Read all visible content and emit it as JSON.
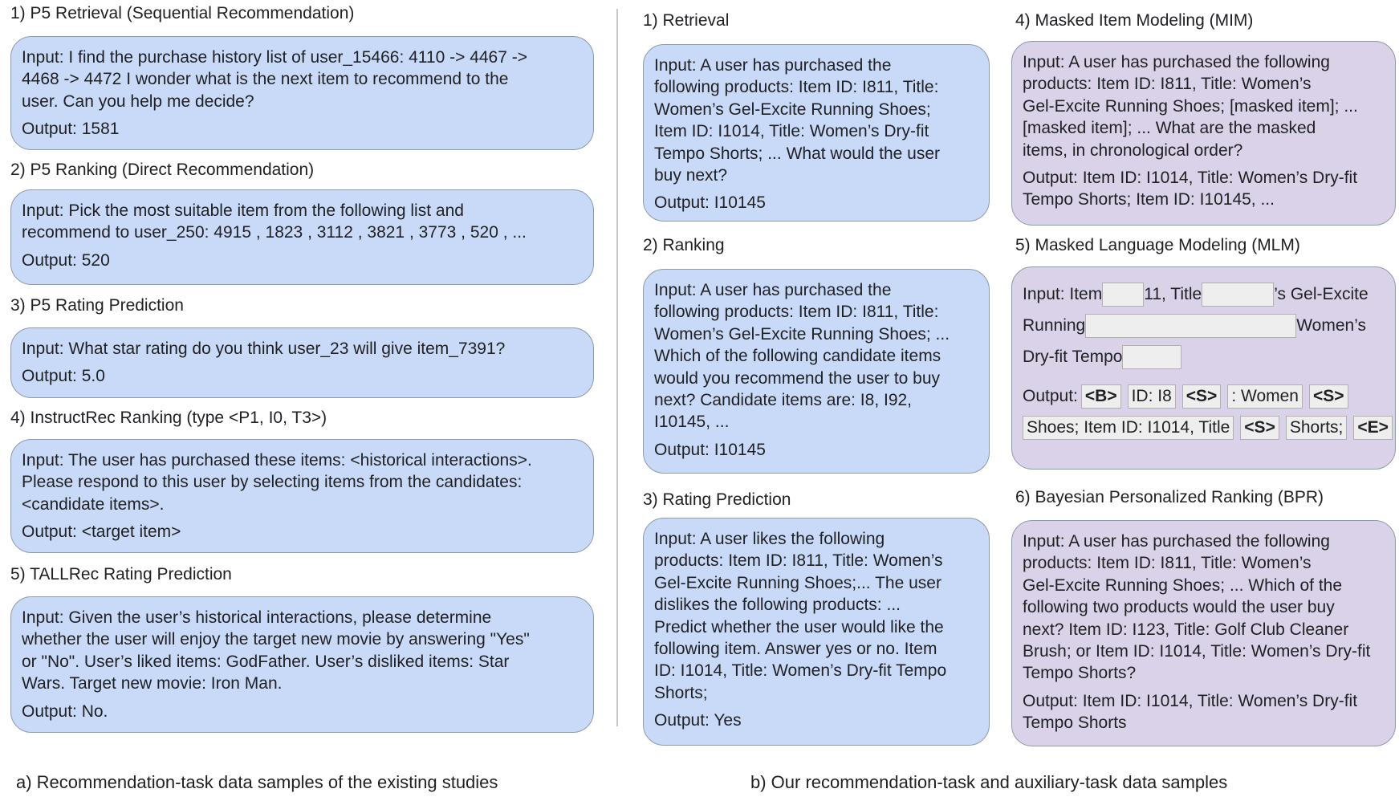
{
  "left": {
    "sections": [
      {
        "title": "1) P5 Retrieval (Sequential Recommendation)",
        "lines": [
          "Input: I find the purchase history list of user_15466: 4110 -> 4467 ->",
          "4468 -> 4472 I wonder what is the next item to recommend to the",
          "user. Can you help me decide?"
        ],
        "output": "Output: 1581"
      },
      {
        "title": "2) P5 Ranking (Direct Recommendation)",
        "lines": [
          "Input: Pick the most suitable item from the following list and",
          "recommend to user_250: 4915 , 1823 , 3112 , 3821 , 3773 , 520 , ..."
        ],
        "output": "Output: 520"
      },
      {
        "title": "3) P5 Rating Prediction",
        "lines": [
          "Input: What star rating do you think user_23 will give item_7391?"
        ],
        "output": "Output: 5.0"
      },
      {
        "title": "4) InstructRec Ranking (type <P1, I0, T3>)",
        "lines": [
          "Input: The user has purchased these items: <historical interactions>.",
          "Please respond to this user by selecting items from the candidates:",
          "<candidate items>."
        ],
        "output": "Output: <target item>"
      },
      {
        "title": "5) TALLRec Rating Prediction",
        "lines": [
          "Input: Given the user’s historical interactions, please determine",
          "whether the user will enjoy the target new movie by answering \"Yes\"",
          "or \"No\". User’s liked items: GodFather. User’s disliked items: Star",
          "Wars. Target new movie: Iron Man."
        ],
        "output": "Output: No."
      }
    ],
    "caption": "a)  Recommendation-task data samples of the existing studies"
  },
  "middle": {
    "sections": [
      {
        "title": "1) Retrieval",
        "lines": [
          "Input: A user has purchased the",
          "following products: Item ID: I811, Title:",
          "Women’s Gel-Excite Running Shoes;",
          "Item ID: I1014, Title: Women’s Dry-fit",
          "Tempo Shorts; ... What would the user",
          "buy next?"
        ],
        "output": "Output: I10145"
      },
      {
        "title": "2) Ranking",
        "lines": [
          "Input: A user has purchased the",
          "following products: Item ID: I811, Title:",
          "Women’s Gel-Excite Running Shoes; ...",
          "Which of the following candidate items",
          "would you recommend the user to buy",
          "next? Candidate items are: I8, I92,",
          "I10145, ..."
        ],
        "output": "Output: I10145"
      },
      {
        "title": "3) Rating Prediction",
        "lines": [
          "Input: A user likes the following",
          "products: Item ID: I811, Title: Women’s",
          "Gel-Excite Running Shoes;... The user",
          "dislikes the following products: ...",
          "Predict whether the user would like the",
          "following item. Answer yes or no. Item",
          "ID: I1014, Title: Women’s Dry-fit Tempo",
          "Shorts;"
        ],
        "output": "Output: Yes"
      }
    ]
  },
  "right": {
    "mim": {
      "title": "4) Masked Item Modeling (MIM)",
      "lines": [
        "Input: A user has purchased the following",
        "products: Item ID: I811, Title: Women’s",
        "Gel-Excite Running Shoes; [masked item]; ...",
        "[masked item]; ... What are the masked",
        "items, in chronological order?"
      ],
      "output_lines": [
        "Output: Item ID: I1014, Title: Women’s Dry-fit",
        "Tempo Shorts; Item ID: I10145, ..."
      ]
    },
    "mlm": {
      "title": "5) Masked Language Modeling (MLM)",
      "input": {
        "t1": "Input: Item ",
        "t2": "11, Title",
        "t3": "’s Gel-Excite",
        "t4": "Running ",
        "t5": " Women’s",
        "t6": "Dry-fit Tempo "
      },
      "output_label": "Output: ",
      "tokens1": [
        "<B>",
        " ID: I8",
        "<S>",
        ": Women",
        "<S>"
      ],
      "tokens2": [
        "Shoes; Item ID: I1014, Title",
        "<S>",
        "Shorts;",
        "<E>"
      ]
    },
    "bpr": {
      "title": "6) Bayesian Personalized Ranking (BPR)",
      "lines": [
        "Input: A user has purchased the following",
        "products: Item ID: I811, Title: Women’s",
        "Gel-Excite Running Shoes; ... Which of the",
        "following two products would the user buy",
        "next? Item ID: I123, Title: Golf Club Cleaner",
        "Brush; or Item ID: I1014, Title: Women’s Dry-fit",
        "Tempo Shorts?"
      ],
      "output_lines": [
        "Output: Item ID: I1014, Title: Women’s Dry-fit",
        "Tempo Shorts"
      ]
    },
    "caption": "b)  Our recommendation-task and auxiliary-task data samples"
  },
  "colors": {
    "recommendation_box": "#c9daf8",
    "auxiliary_box": "#d9d2e9",
    "mask": "#eeeeee"
  }
}
